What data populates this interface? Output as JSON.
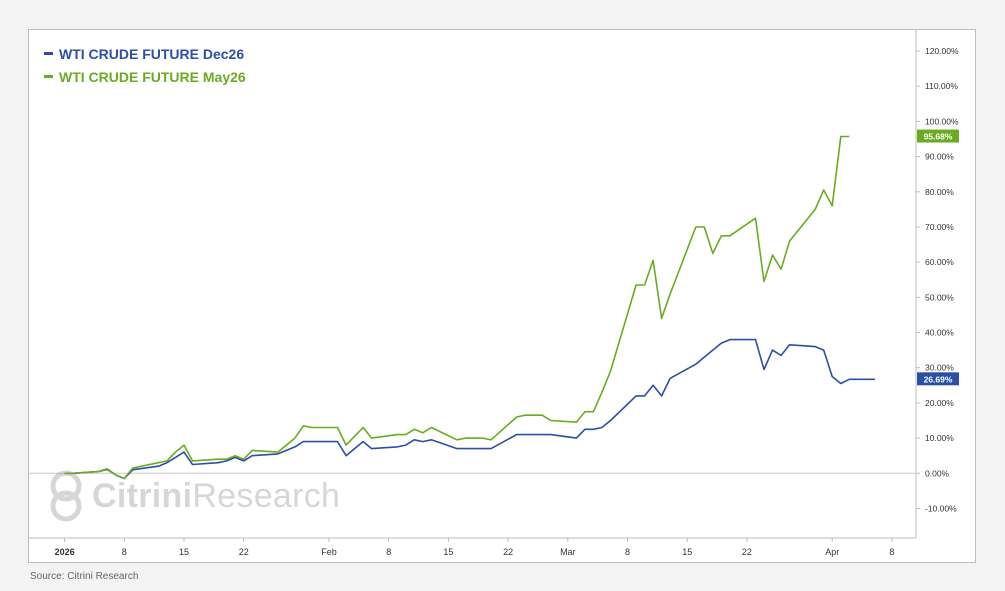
{
  "chart_data": {
    "type": "line",
    "y_unit": "%",
    "ylim": [
      -13,
      122
    ],
    "y_ticks": [
      "120.00%",
      "110.00%",
      "100.00%",
      "90.00%",
      "80.00%",
      "70.00%",
      "60.00%",
      "50.00%",
      "40.00%",
      "30.00%",
      "20.00%",
      "10.00%",
      "0.00%",
      "-10.00%"
    ],
    "y_tick_values": [
      120,
      110,
      100,
      90,
      80,
      70,
      60,
      50,
      40,
      30,
      20,
      10,
      0,
      -10
    ],
    "x_ticks": [
      {
        "label": "2026",
        "date": "2026-01-01",
        "bold": true
      },
      {
        "label": "8",
        "date": "2026-01-08"
      },
      {
        "label": "15",
        "date": "2026-01-15"
      },
      {
        "label": "22",
        "date": "2026-01-22"
      },
      {
        "label": "Feb",
        "date": "2026-02-01"
      },
      {
        "label": "8",
        "date": "2026-02-08"
      },
      {
        "label": "15",
        "date": "2026-02-15"
      },
      {
        "label": "22",
        "date": "2026-02-22"
      },
      {
        "label": "Mar",
        "date": "2026-03-01"
      },
      {
        "label": "8",
        "date": "2026-03-08"
      },
      {
        "label": "15",
        "date": "2026-03-15"
      },
      {
        "label": "22",
        "date": "2026-03-22"
      },
      {
        "label": "Apr",
        "date": "2026-04-01"
      },
      {
        "label": "8",
        "date": "2026-04-08"
      }
    ],
    "x_range": [
      "2025-12-29",
      "2026-04-10"
    ],
    "grid": false,
    "legend_position": "top-left",
    "series": [
      {
        "name": "WTI CRUDE FUTURE Dec26",
        "color": "#2b4fa6",
        "last_label": "26.69%",
        "points": [
          [
            "2026-01-01",
            0.0
          ],
          [
            "2026-01-02",
            0.0
          ],
          [
            "2026-01-05",
            0.5
          ],
          [
            "2026-01-06",
            1.2
          ],
          [
            "2026-01-07",
            -0.5
          ],
          [
            "2026-01-08",
            -1.5
          ],
          [
            "2026-01-09",
            1.0
          ],
          [
            "2026-01-12",
            2.0
          ],
          [
            "2026-01-13",
            3.0
          ],
          [
            "2026-01-14",
            4.5
          ],
          [
            "2026-01-15",
            6.0
          ],
          [
            "2026-01-16",
            2.5
          ],
          [
            "2026-01-19",
            3.0
          ],
          [
            "2026-01-20",
            3.5
          ],
          [
            "2026-01-21",
            4.5
          ],
          [
            "2026-01-22",
            3.5
          ],
          [
            "2026-01-23",
            5.0
          ],
          [
            "2026-01-26",
            5.5
          ],
          [
            "2026-01-27",
            6.5
          ],
          [
            "2026-01-28",
            7.5
          ],
          [
            "2026-01-29",
            9.0
          ],
          [
            "2026-01-30",
            9.0
          ],
          [
            "2026-02-02",
            9.0
          ],
          [
            "2026-02-03",
            5.0
          ],
          [
            "2026-02-04",
            7.0
          ],
          [
            "2026-02-05",
            9.0
          ],
          [
            "2026-02-06",
            7.0
          ],
          [
            "2026-02-09",
            7.5
          ],
          [
            "2026-02-10",
            8.0
          ],
          [
            "2026-02-11",
            9.5
          ],
          [
            "2026-02-12",
            9.0
          ],
          [
            "2026-02-13",
            9.5
          ],
          [
            "2026-02-16",
            7.0
          ],
          [
            "2026-02-17",
            7.0
          ],
          [
            "2026-02-18",
            7.0
          ],
          [
            "2026-02-19",
            7.0
          ],
          [
            "2026-02-20",
            7.0
          ],
          [
            "2026-02-23",
            11.0
          ],
          [
            "2026-02-24",
            11.0
          ],
          [
            "2026-02-25",
            11.0
          ],
          [
            "2026-02-26",
            11.0
          ],
          [
            "2026-02-27",
            11.0
          ],
          [
            "2026-03-02",
            10.0
          ],
          [
            "2026-03-03",
            12.5
          ],
          [
            "2026-03-04",
            12.5
          ],
          [
            "2026-03-05",
            13.0
          ],
          [
            "2026-03-06",
            15.0
          ],
          [
            "2026-03-09",
            22.0
          ],
          [
            "2026-03-10",
            22.0
          ],
          [
            "2026-03-11",
            25.0
          ],
          [
            "2026-03-12",
            22.0
          ],
          [
            "2026-03-13",
            27.0
          ],
          [
            "2026-03-16",
            31.0
          ],
          [
            "2026-03-17",
            33.0
          ],
          [
            "2026-03-18",
            35.0
          ],
          [
            "2026-03-19",
            37.0
          ],
          [
            "2026-03-20",
            38.0
          ],
          [
            "2026-03-23",
            38.0
          ],
          [
            "2026-03-24",
            29.5
          ],
          [
            "2026-03-25",
            35.0
          ],
          [
            "2026-03-26",
            33.5
          ],
          [
            "2026-03-27",
            36.5
          ],
          [
            "2026-03-30",
            36.0
          ],
          [
            "2026-03-31",
            35.0
          ],
          [
            "2026-04-01",
            27.5
          ],
          [
            "2026-04-02",
            25.5
          ],
          [
            "2026-04-03",
            26.7
          ],
          [
            "2026-04-06",
            26.7
          ]
        ]
      },
      {
        "name": "WTI CRUDE FUTURE May26",
        "color": "#6aab21",
        "last_label": "95.68%",
        "points": [
          [
            "2026-01-01",
            0.0
          ],
          [
            "2026-01-02",
            0.0
          ],
          [
            "2026-01-05",
            0.5
          ],
          [
            "2026-01-06",
            1.0
          ],
          [
            "2026-01-07",
            -0.5
          ],
          [
            "2026-01-08",
            -1.5
          ],
          [
            "2026-01-09",
            1.5
          ],
          [
            "2026-01-12",
            3.0
          ],
          [
            "2026-01-13",
            3.5
          ],
          [
            "2026-01-14",
            6.0
          ],
          [
            "2026-01-15",
            8.0
          ],
          [
            "2026-01-16",
            3.5
          ],
          [
            "2026-01-19",
            4.0
          ],
          [
            "2026-01-20",
            4.0
          ],
          [
            "2026-01-21",
            5.0
          ],
          [
            "2026-01-22",
            4.0
          ],
          [
            "2026-01-23",
            6.5
          ],
          [
            "2026-01-26",
            6.0
          ],
          [
            "2026-01-27",
            8.0
          ],
          [
            "2026-01-28",
            10.0
          ],
          [
            "2026-01-29",
            13.5
          ],
          [
            "2026-01-30",
            13.0
          ],
          [
            "2026-02-02",
            13.0
          ],
          [
            "2026-02-03",
            8.0
          ],
          [
            "2026-02-04",
            10.5
          ],
          [
            "2026-02-05",
            13.0
          ],
          [
            "2026-02-06",
            10.0
          ],
          [
            "2026-02-09",
            11.0
          ],
          [
            "2026-02-10",
            11.0
          ],
          [
            "2026-02-11",
            12.5
          ],
          [
            "2026-02-12",
            11.5
          ],
          [
            "2026-02-13",
            13.0
          ],
          [
            "2026-02-16",
            9.5
          ],
          [
            "2026-02-17",
            10.0
          ],
          [
            "2026-02-18",
            10.0
          ],
          [
            "2026-02-19",
            10.0
          ],
          [
            "2026-02-20",
            9.5
          ],
          [
            "2026-02-23",
            16.0
          ],
          [
            "2026-02-24",
            16.5
          ],
          [
            "2026-02-25",
            16.5
          ],
          [
            "2026-02-26",
            16.5
          ],
          [
            "2026-02-27",
            15.0
          ],
          [
            "2026-03-02",
            14.5
          ],
          [
            "2026-03-03",
            17.5
          ],
          [
            "2026-03-04",
            17.5
          ],
          [
            "2026-03-05",
            23.0
          ],
          [
            "2026-03-06",
            29.0
          ],
          [
            "2026-03-09",
            53.5
          ],
          [
            "2026-03-10",
            53.5
          ],
          [
            "2026-03-11",
            60.5
          ],
          [
            "2026-03-12",
            44.0
          ],
          [
            "2026-03-13",
            51.0
          ],
          [
            "2026-03-16",
            70.0
          ],
          [
            "2026-03-17",
            70.0
          ],
          [
            "2026-03-18",
            62.5
          ],
          [
            "2026-03-19",
            67.5
          ],
          [
            "2026-03-20",
            67.5
          ],
          [
            "2026-03-23",
            72.5
          ],
          [
            "2026-03-24",
            54.5
          ],
          [
            "2026-03-25",
            62.0
          ],
          [
            "2026-03-26",
            58.0
          ],
          [
            "2026-03-27",
            66.0
          ],
          [
            "2026-03-30",
            75.0
          ],
          [
            "2026-03-31",
            80.5
          ],
          [
            "2026-04-01",
            76.0
          ],
          [
            "2026-04-02",
            95.7
          ],
          [
            "2026-04-03",
            95.7
          ]
        ]
      }
    ]
  },
  "watermark": {
    "brand_bold": "Citrini",
    "brand_light": "Research",
    "icon": "citrini-logo-icon"
  },
  "source": "Source: Citrini Research"
}
